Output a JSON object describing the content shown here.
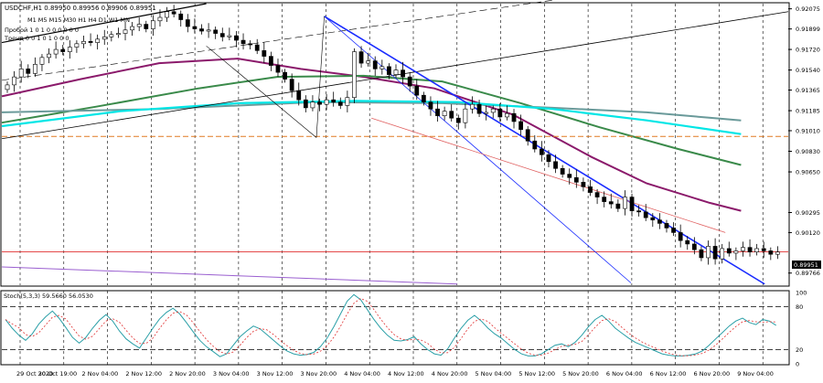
{
  "chart_data": [
    {
      "type": "candlestick",
      "symbol_header": "USDCHF,H1  0.89950 0.89956 0.89906 0.89951",
      "timeframes_label": "M1 M5 M15 M30 H1 H4 D1 W1 MN",
      "breakout_row": "Пробой   1    0    1    0    0    0    0    0    0",
      "trend_row": "Тренд    0    0    1    0    1    0    0    0",
      "ylim": [
        0.8966,
        0.9212
      ],
      "y_ticks": [
        "0.92075",
        "0.91899",
        "0.91720",
        "0.91540",
        "0.91365",
        "0.91185",
        "0.91010",
        "0.90830",
        "0.90650",
        "0.90295",
        "0.90120",
        "0.89766"
      ],
      "last_price": "0.89951",
      "x_tick_labels": [
        "29 Oct 2020",
        "30 Oct 19:00",
        "2 Nov 04:00",
        "2 Nov 12:00",
        "2 Nov 20:00",
        "3 Nov 04:00",
        "3 Nov 12:00",
        "3 Nov 20:00",
        "4 Nov 04:00",
        "4 Nov 12:00",
        "4 Nov 20:00",
        "5 Nov 04:00",
        "5 Nov 12:00",
        "5 Nov 20:00",
        "6 Nov 04:00",
        "6 Nov 12:00",
        "6 Nov 20:00",
        "9 Nov 04:00"
      ],
      "close_path": [
        0.9141,
        0.9148,
        0.9155,
        0.9151,
        0.9159,
        0.9165,
        0.9168,
        0.9172,
        0.917,
        0.9174,
        0.9177,
        0.9179,
        0.9178,
        0.9181,
        0.9183,
        0.9185,
        0.9186,
        0.9189,
        0.9192,
        0.9194,
        0.919,
        0.9197,
        0.92,
        0.9205,
        0.9203,
        0.9198,
        0.9192,
        0.919,
        0.9188,
        0.9189,
        0.9186,
        0.9183,
        0.9184,
        0.918,
        0.9177,
        0.9176,
        0.9171,
        0.9166,
        0.9158,
        0.9152,
        0.9146,
        0.9136,
        0.9128,
        0.9121,
        0.9126,
        0.9124,
        0.9128,
        0.9126,
        0.9123,
        0.913,
        0.917,
        0.916,
        0.9162,
        0.9155,
        0.9157,
        0.915,
        0.9154,
        0.9148,
        0.914,
        0.9132,
        0.9126,
        0.912,
        0.9114,
        0.9118,
        0.9112,
        0.9108,
        0.912,
        0.9124,
        0.9116,
        0.9117,
        0.912,
        0.9113,
        0.9116,
        0.9109,
        0.9102,
        0.9092,
        0.9085,
        0.908,
        0.9074,
        0.9068,
        0.9063,
        0.906,
        0.9056,
        0.9052,
        0.9047,
        0.9043,
        0.9039,
        0.9037,
        0.9033,
        0.9043,
        0.9031,
        0.903,
        0.9025,
        0.9023,
        0.902,
        0.9016,
        0.9012,
        0.9005,
        0.9002,
        0.8997,
        0.899,
        0.9,
        0.8989,
        0.8998,
        0.8994,
        0.8996,
        0.8999,
        0.8995,
        0.8998,
        0.8996,
        0.8993,
        0.8995
      ],
      "stochastic": {
        "label": "Stoch(5,3,3) 59.5660 56.0530",
        "ylim": [
          0,
          100
        ],
        "levels": [
          "100",
          "80",
          "20",
          "0"
        ],
        "main": [
          62,
          50,
          40,
          33,
          42,
          56,
          66,
          74,
          64,
          51,
          37,
          29,
          37,
          50,
          61,
          69,
          60,
          46,
          35,
          28,
          22,
          36,
          50,
          63,
          72,
          78,
          70,
          58,
          45,
          33,
          24,
          17,
          10,
          14,
          26,
          38,
          46,
          53,
          49,
          41,
          33,
          25,
          18,
          14,
          12,
          13,
          16,
          24,
          36,
          52,
          70,
          88,
          97,
          90,
          76,
          62,
          50,
          40,
          33,
          32,
          34,
          38,
          28,
          20,
          14,
          12,
          21,
          36,
          50,
          61,
          68,
          60,
          50,
          42,
          36,
          28,
          20,
          14,
          11,
          11,
          14,
          20,
          26,
          28,
          24,
          30,
          40,
          52,
          62,
          68,
          60,
          50,
          43,
          36,
          30,
          26,
          22,
          18,
          14,
          12,
          11,
          11,
          12,
          14,
          18,
          26,
          35,
          44,
          53,
          60,
          64,
          58,
          55,
          62,
          60,
          54
        ]
      },
      "colors": {
        "bullish_body": "#ffffff",
        "bearish_body": "#000000",
        "ma_purple": "#8b1a6b",
        "ma_green": "#3a8a4a",
        "ma_grey": "#6a9a9a",
        "ma_cyan": "#00e6e6",
        "channel_blue": "#1a2cff",
        "support_orange": "#e07a22",
        "price_line_red": "#e03030",
        "stoch_main": "#2a9fa7",
        "stoch_signal": "#e03030"
      }
    }
  ]
}
